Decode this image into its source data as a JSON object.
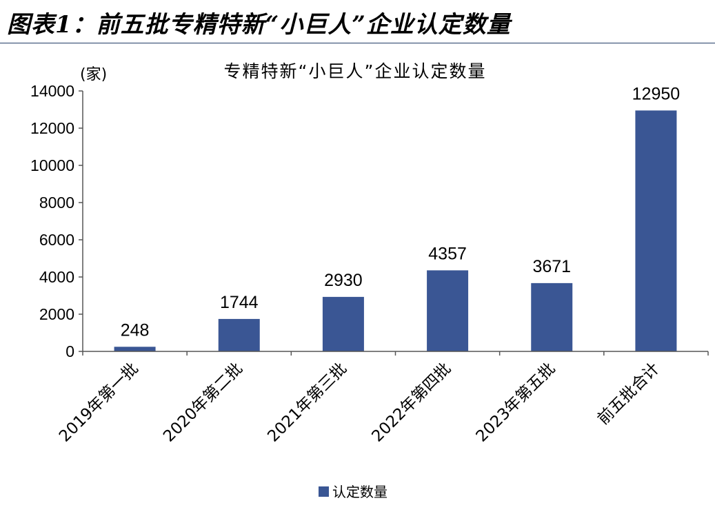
{
  "figure_title": "图表1：前五批专精特新“小巨人”企业认定数量",
  "chart_data": {
    "type": "bar",
    "title": "专精特新“小巨人”企业认定数量",
    "unit_label": "(家)",
    "categories": [
      "2019年第一批",
      "2020年第二批",
      "2021年第三批",
      "2022年第四批",
      "2023年第五批",
      "前五批合计"
    ],
    "series": [
      {
        "name": "认定数量",
        "values": [
          248,
          1744,
          2930,
          4357,
          3671,
          12950
        ]
      }
    ],
    "data_labels": [
      "248",
      "1744",
      "2930",
      "4357",
      "3671",
      "12950"
    ],
    "ylim": [
      0,
      14000
    ],
    "yticks": [
      0,
      2000,
      4000,
      6000,
      8000,
      10000,
      12000,
      14000
    ],
    "ytick_labels": [
      "0",
      "2000",
      "4000",
      "6000",
      "8000",
      "10000",
      "12000",
      "14000"
    ],
    "grid": false,
    "legend_position": "bottom-center",
    "bar_color": "#3a5694"
  }
}
